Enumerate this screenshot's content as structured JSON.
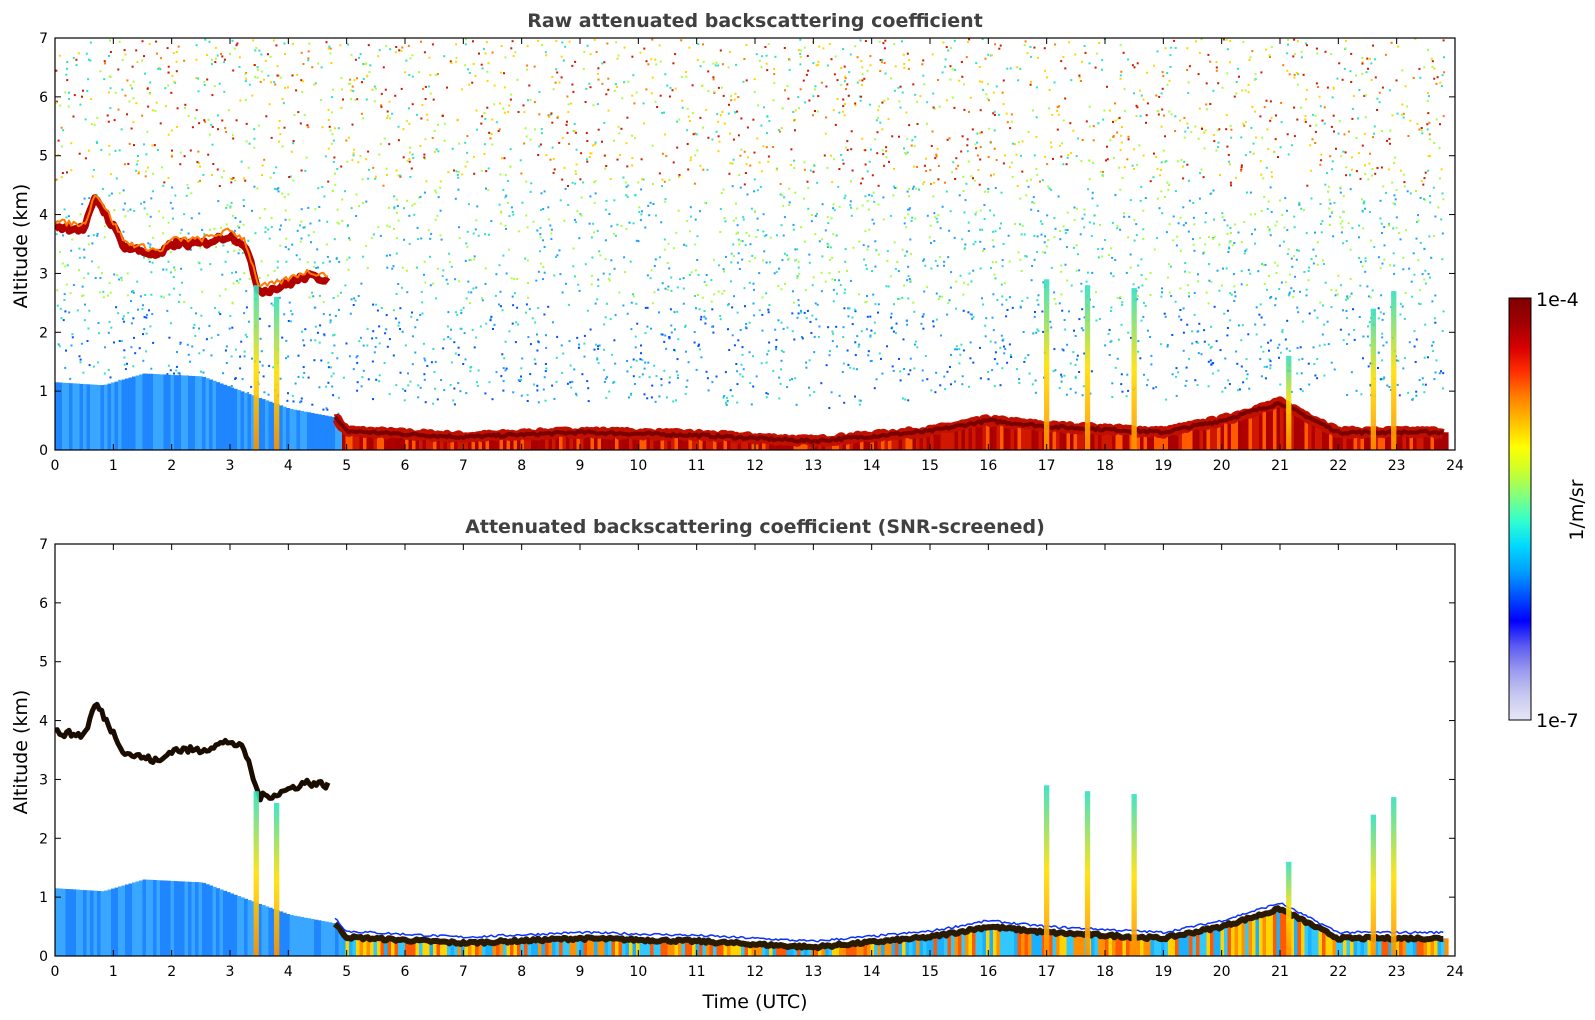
{
  "chart_data": [
    {
      "type": "heatmap",
      "title": "Raw attenuated backscattering coefficient",
      "xlabel": "",
      "ylabel": "Altitude (km)",
      "xlim": [
        0,
        24
      ],
      "ylim": [
        0,
        7
      ],
      "xticks": [
        "0",
        "1",
        "2",
        "3",
        "4",
        "5",
        "6",
        "7",
        "8",
        "9",
        "10",
        "11",
        "12",
        "13",
        "14",
        "15",
        "16",
        "17",
        "18",
        "19",
        "20",
        "21",
        "22",
        "23",
        "24"
      ],
      "yticks": [
        "0",
        "1",
        "2",
        "3",
        "4",
        "5",
        "6",
        "7"
      ],
      "colorscale": "log",
      "features": {
        "cloud_layer_km": [
          [
            0,
            3.8
          ],
          [
            0.5,
            3.75
          ],
          [
            0.7,
            4.3
          ],
          [
            1.2,
            3.45
          ],
          [
            1.8,
            3.3
          ],
          [
            2.0,
            3.5
          ],
          [
            2.5,
            3.5
          ],
          [
            3.0,
            3.65
          ],
          [
            3.25,
            3.5
          ],
          [
            3.5,
            2.7
          ],
          [
            3.8,
            2.75
          ],
          [
            4.3,
            2.95
          ],
          [
            4.7,
            2.9
          ]
        ],
        "boundary_layer_top_km": [
          [
            0,
            1.15
          ],
          [
            0.8,
            1.1
          ],
          [
            1.5,
            1.3
          ],
          [
            2.5,
            1.25
          ],
          [
            3.3,
            0.95
          ],
          [
            4.0,
            0.7
          ],
          [
            4.8,
            0.55
          ],
          [
            5.0,
            0.32
          ],
          [
            7.0,
            0.22
          ],
          [
            9.0,
            0.3
          ],
          [
            11.0,
            0.25
          ],
          [
            13.0,
            0.15
          ],
          [
            15.0,
            0.32
          ],
          [
            16.0,
            0.5
          ],
          [
            17.0,
            0.4
          ],
          [
            19.0,
            0.3
          ],
          [
            20.0,
            0.5
          ],
          [
            21.0,
            0.8
          ],
          [
            22.0,
            0.3
          ],
          [
            23.8,
            0.3
          ]
        ],
        "plumes": [
          {
            "t": 3.45,
            "top": 2.8
          },
          {
            "t": 3.8,
            "top": 2.6
          },
          {
            "t": 17.0,
            "top": 2.9
          },
          {
            "t": 17.7,
            "top": 2.8
          },
          {
            "t": 18.5,
            "top": 2.75
          },
          {
            "t": 21.15,
            "top": 1.6
          },
          {
            "t": 22.6,
            "top": 2.4
          },
          {
            "t": 22.95,
            "top": 2.7
          }
        ]
      }
    },
    {
      "type": "heatmap",
      "title": "Attenuated backscattering coefficient (SNR-screened)",
      "xlabel": "Time (UTC)",
      "ylabel": "Altitude (km)",
      "xlim": [
        0,
        24
      ],
      "ylim": [
        0,
        7
      ],
      "xticks": [
        "0",
        "1",
        "2",
        "3",
        "4",
        "5",
        "6",
        "7",
        "8",
        "9",
        "10",
        "11",
        "12",
        "13",
        "14",
        "15",
        "16",
        "17",
        "18",
        "19",
        "20",
        "21",
        "22",
        "23",
        "24"
      ],
      "yticks": [
        "0",
        "1",
        "2",
        "3",
        "4",
        "5",
        "6",
        "7"
      ],
      "colorscale": "log"
    }
  ],
  "colorbar": {
    "max_label": "1e-4",
    "min_label": "1e-7",
    "unit_label": "1/m/sr",
    "colors": [
      "#e6e6f7",
      "#c8c8f0",
      "#9a9aee",
      "#5a5af2",
      "#0000ff",
      "#0050ff",
      "#00a0ff",
      "#00d8ff",
      "#30ffd0",
      "#80ff80",
      "#c8ff30",
      "#ffff00",
      "#ffc000",
      "#ff8000",
      "#ff3000",
      "#d80000",
      "#a00000",
      "#800000"
    ]
  }
}
